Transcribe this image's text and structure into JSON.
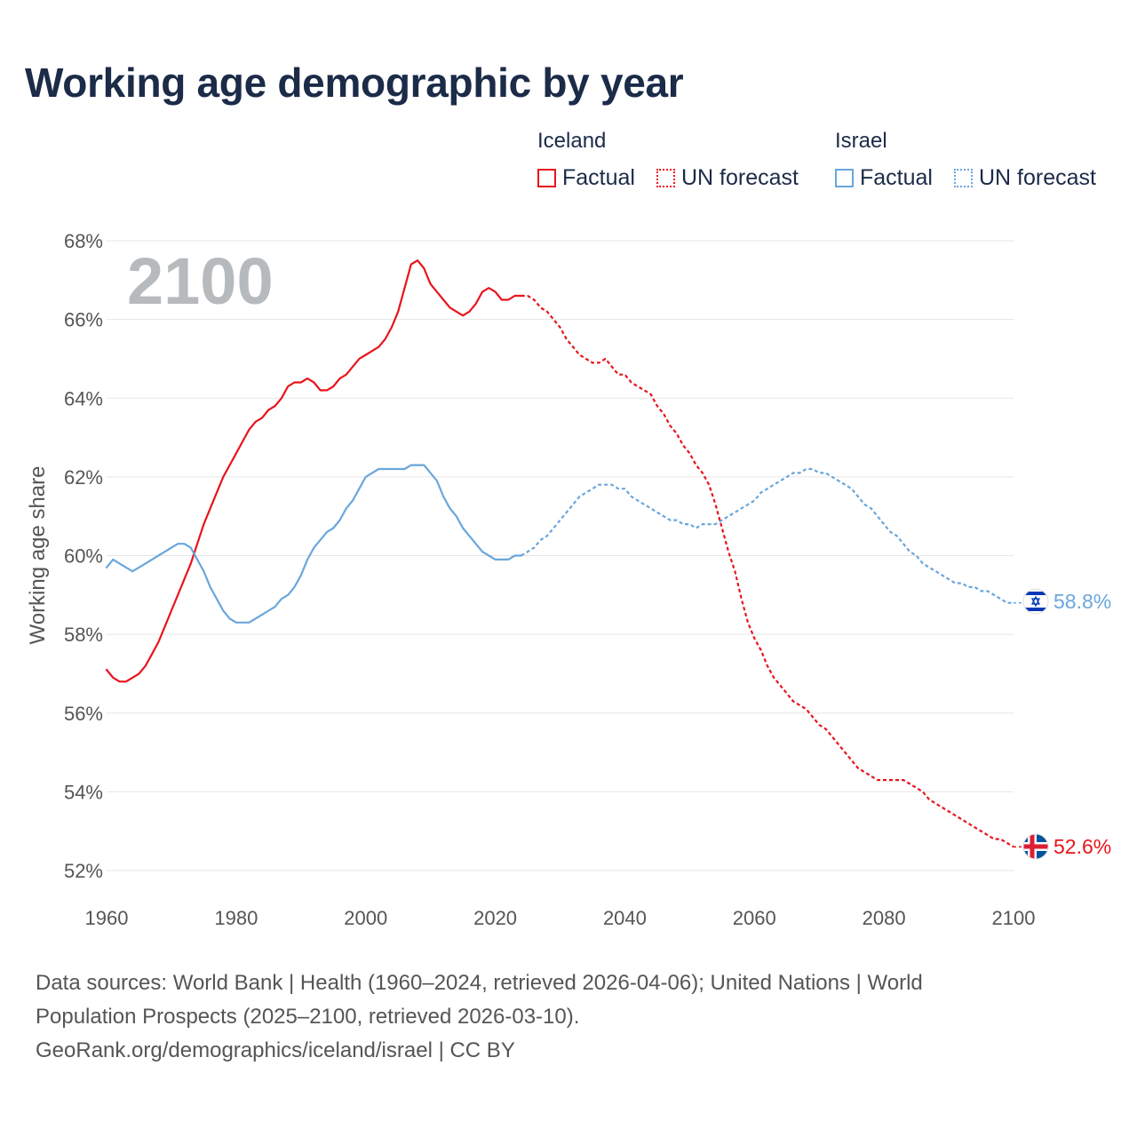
{
  "title": "Working age demographic by year",
  "legend": {
    "groups": [
      {
        "country": "Iceland",
        "factual_label": "Factual",
        "forecast_label": "UN forecast",
        "color": "#e8141c"
      },
      {
        "country": "Israel",
        "factual_label": "Factual",
        "forecast_label": "UN forecast",
        "color": "#6aa6dc"
      }
    ]
  },
  "year_label": "2100",
  "footer": {
    "line1": "Data sources: World Bank | Health (1960–2024, retrieved 2026-04-06); United Nations | World",
    "line2": "Population Prospects (2025–2100, retrieved 2026-03-10).",
    "line3": "GeoRank.org/demographics/iceland/israel | CC BY"
  },
  "colors": {
    "title": "#1b2b48",
    "grid": "#e6e6e6",
    "tick": "#555555",
    "year_label": "#b7babd"
  },
  "chart_data": {
    "type": "line",
    "title": "Working age demographic by year",
    "xlabel": "",
    "ylabel": "Working age share",
    "xlim": [
      1960,
      2100
    ],
    "ylim": [
      52,
      68
    ],
    "xticks": [
      1960,
      1980,
      2000,
      2020,
      2040,
      2060,
      2080,
      2100
    ],
    "yticks": [
      52,
      54,
      56,
      58,
      60,
      62,
      64,
      66,
      68
    ],
    "ytick_suffix": "%",
    "factual_end_year": 2024,
    "series": [
      {
        "name": "Iceland",
        "color": "#e8141c",
        "end_label": "52.6%",
        "flag": "iceland-flag",
        "points": [
          [
            1960,
            57.1
          ],
          [
            1961,
            56.9
          ],
          [
            1962,
            56.8
          ],
          [
            1963,
            56.8
          ],
          [
            1964,
            56.9
          ],
          [
            1965,
            57.0
          ],
          [
            1966,
            57.2
          ],
          [
            1967,
            57.5
          ],
          [
            1968,
            57.8
          ],
          [
            1969,
            58.2
          ],
          [
            1970,
            58.6
          ],
          [
            1971,
            59.0
          ],
          [
            1972,
            59.4
          ],
          [
            1973,
            59.8
          ],
          [
            1974,
            60.3
          ],
          [
            1975,
            60.8
          ],
          [
            1976,
            61.2
          ],
          [
            1977,
            61.6
          ],
          [
            1978,
            62.0
          ],
          [
            1979,
            62.3
          ],
          [
            1980,
            62.6
          ],
          [
            1981,
            62.9
          ],
          [
            1982,
            63.2
          ],
          [
            1983,
            63.4
          ],
          [
            1984,
            63.5
          ],
          [
            1985,
            63.7
          ],
          [
            1986,
            63.8
          ],
          [
            1987,
            64.0
          ],
          [
            1988,
            64.3
          ],
          [
            1989,
            64.4
          ],
          [
            1990,
            64.4
          ],
          [
            1991,
            64.5
          ],
          [
            1992,
            64.4
          ],
          [
            1993,
            64.2
          ],
          [
            1994,
            64.2
          ],
          [
            1995,
            64.3
          ],
          [
            1996,
            64.5
          ],
          [
            1997,
            64.6
          ],
          [
            1998,
            64.8
          ],
          [
            1999,
            65.0
          ],
          [
            2000,
            65.1
          ],
          [
            2001,
            65.2
          ],
          [
            2002,
            65.3
          ],
          [
            2003,
            65.5
          ],
          [
            2004,
            65.8
          ],
          [
            2005,
            66.2
          ],
          [
            2006,
            66.8
          ],
          [
            2007,
            67.4
          ],
          [
            2008,
            67.5
          ],
          [
            2009,
            67.3
          ],
          [
            2010,
            66.9
          ],
          [
            2011,
            66.7
          ],
          [
            2012,
            66.5
          ],
          [
            2013,
            66.3
          ],
          [
            2014,
            66.2
          ],
          [
            2015,
            66.1
          ],
          [
            2016,
            66.2
          ],
          [
            2017,
            66.4
          ],
          [
            2018,
            66.7
          ],
          [
            2019,
            66.8
          ],
          [
            2020,
            66.7
          ],
          [
            2021,
            66.5
          ],
          [
            2022,
            66.5
          ],
          [
            2023,
            66.6
          ],
          [
            2024,
            66.6
          ],
          [
            2025,
            66.6
          ],
          [
            2026,
            66.5
          ],
          [
            2027,
            66.3
          ],
          [
            2028,
            66.2
          ],
          [
            2029,
            66.0
          ],
          [
            2030,
            65.8
          ],
          [
            2031,
            65.5
          ],
          [
            2032,
            65.3
          ],
          [
            2033,
            65.1
          ],
          [
            2034,
            65.0
          ],
          [
            2035,
            64.9
          ],
          [
            2036,
            64.9
          ],
          [
            2037,
            65.0
          ],
          [
            2038,
            64.8
          ],
          [
            2039,
            64.6
          ],
          [
            2040,
            64.6
          ],
          [
            2041,
            64.4
          ],
          [
            2042,
            64.3
          ],
          [
            2043,
            64.2
          ],
          [
            2044,
            64.1
          ],
          [
            2045,
            63.8
          ],
          [
            2046,
            63.6
          ],
          [
            2047,
            63.3
          ],
          [
            2048,
            63.1
          ],
          [
            2049,
            62.8
          ],
          [
            2050,
            62.6
          ],
          [
            2051,
            62.3
          ],
          [
            2052,
            62.1
          ],
          [
            2053,
            61.8
          ],
          [
            2054,
            61.3
          ],
          [
            2055,
            60.7
          ],
          [
            2056,
            60.1
          ],
          [
            2057,
            59.6
          ],
          [
            2058,
            58.9
          ],
          [
            2059,
            58.3
          ],
          [
            2060,
            57.9
          ],
          [
            2061,
            57.6
          ],
          [
            2062,
            57.2
          ],
          [
            2063,
            56.9
          ],
          [
            2064,
            56.7
          ],
          [
            2065,
            56.5
          ],
          [
            2066,
            56.3
          ],
          [
            2067,
            56.2
          ],
          [
            2068,
            56.1
          ],
          [
            2069,
            55.9
          ],
          [
            2070,
            55.7
          ],
          [
            2071,
            55.6
          ],
          [
            2072,
            55.4
          ],
          [
            2073,
            55.2
          ],
          [
            2074,
            55.0
          ],
          [
            2075,
            54.8
          ],
          [
            2076,
            54.6
          ],
          [
            2077,
            54.5
          ],
          [
            2078,
            54.4
          ],
          [
            2079,
            54.3
          ],
          [
            2080,
            54.3
          ],
          [
            2081,
            54.3
          ],
          [
            2082,
            54.3
          ],
          [
            2083,
            54.3
          ],
          [
            2084,
            54.2
          ],
          [
            2085,
            54.1
          ],
          [
            2086,
            54.0
          ],
          [
            2087,
            53.8
          ],
          [
            2088,
            53.7
          ],
          [
            2089,
            53.6
          ],
          [
            2090,
            53.5
          ],
          [
            2091,
            53.4
          ],
          [
            2092,
            53.3
          ],
          [
            2093,
            53.2
          ],
          [
            2094,
            53.1
          ],
          [
            2095,
            53.0
          ],
          [
            2096,
            52.9
          ],
          [
            2097,
            52.8
          ],
          [
            2098,
            52.8
          ],
          [
            2099,
            52.7
          ],
          [
            2100,
            52.6
          ]
        ]
      },
      {
        "name": "Israel",
        "color": "#6aa6dc",
        "end_label": "58.8%",
        "flag": "israel-flag",
        "points": [
          [
            1960,
            59.7
          ],
          [
            1961,
            59.9
          ],
          [
            1962,
            59.8
          ],
          [
            1963,
            59.7
          ],
          [
            1964,
            59.6
          ],
          [
            1965,
            59.7
          ],
          [
            1966,
            59.8
          ],
          [
            1967,
            59.9
          ],
          [
            1968,
            60.0
          ],
          [
            1969,
            60.1
          ],
          [
            1970,
            60.2
          ],
          [
            1971,
            60.3
          ],
          [
            1972,
            60.3
          ],
          [
            1973,
            60.2
          ],
          [
            1974,
            59.9
          ],
          [
            1975,
            59.6
          ],
          [
            1976,
            59.2
          ],
          [
            1977,
            58.9
          ],
          [
            1978,
            58.6
          ],
          [
            1979,
            58.4
          ],
          [
            1980,
            58.3
          ],
          [
            1981,
            58.3
          ],
          [
            1982,
            58.3
          ],
          [
            1983,
            58.4
          ],
          [
            1984,
            58.5
          ],
          [
            1985,
            58.6
          ],
          [
            1986,
            58.7
          ],
          [
            1987,
            58.9
          ],
          [
            1988,
            59.0
          ],
          [
            1989,
            59.2
          ],
          [
            1990,
            59.5
          ],
          [
            1991,
            59.9
          ],
          [
            1992,
            60.2
          ],
          [
            1993,
            60.4
          ],
          [
            1994,
            60.6
          ],
          [
            1995,
            60.7
          ],
          [
            1996,
            60.9
          ],
          [
            1997,
            61.2
          ],
          [
            1998,
            61.4
          ],
          [
            1999,
            61.7
          ],
          [
            2000,
            62.0
          ],
          [
            2001,
            62.1
          ],
          [
            2002,
            62.2
          ],
          [
            2003,
            62.2
          ],
          [
            2004,
            62.2
          ],
          [
            2005,
            62.2
          ],
          [
            2006,
            62.2
          ],
          [
            2007,
            62.3
          ],
          [
            2008,
            62.3
          ],
          [
            2009,
            62.3
          ],
          [
            2010,
            62.1
          ],
          [
            2011,
            61.9
          ],
          [
            2012,
            61.5
          ],
          [
            2013,
            61.2
          ],
          [
            2014,
            61.0
          ],
          [
            2015,
            60.7
          ],
          [
            2016,
            60.5
          ],
          [
            2017,
            60.3
          ],
          [
            2018,
            60.1
          ],
          [
            2019,
            60.0
          ],
          [
            2020,
            59.9
          ],
          [
            2021,
            59.9
          ],
          [
            2022,
            59.9
          ],
          [
            2023,
            60.0
          ],
          [
            2024,
            60.0
          ],
          [
            2025,
            60.1
          ],
          [
            2026,
            60.2
          ],
          [
            2027,
            60.4
          ],
          [
            2028,
            60.5
          ],
          [
            2029,
            60.7
          ],
          [
            2030,
            60.9
          ],
          [
            2031,
            61.1
          ],
          [
            2032,
            61.3
          ],
          [
            2033,
            61.5
          ],
          [
            2034,
            61.6
          ],
          [
            2035,
            61.7
          ],
          [
            2036,
            61.8
          ],
          [
            2037,
            61.8
          ],
          [
            2038,
            61.8
          ],
          [
            2039,
            61.7
          ],
          [
            2040,
            61.7
          ],
          [
            2041,
            61.5
          ],
          [
            2042,
            61.4
          ],
          [
            2043,
            61.3
          ],
          [
            2044,
            61.2
          ],
          [
            2045,
            61.1
          ],
          [
            2046,
            61.0
          ],
          [
            2047,
            60.9
          ],
          [
            2048,
            60.9
          ],
          [
            2049,
            60.8
          ],
          [
            2050,
            60.8
          ],
          [
            2051,
            60.7
          ],
          [
            2052,
            60.8
          ],
          [
            2053,
            60.8
          ],
          [
            2054,
            60.8
          ],
          [
            2055,
            60.9
          ],
          [
            2056,
            61.0
          ],
          [
            2057,
            61.1
          ],
          [
            2058,
            61.2
          ],
          [
            2059,
            61.3
          ],
          [
            2060,
            61.4
          ],
          [
            2061,
            61.6
          ],
          [
            2062,
            61.7
          ],
          [
            2063,
            61.8
          ],
          [
            2064,
            61.9
          ],
          [
            2065,
            62.0
          ],
          [
            2066,
            62.1
          ],
          [
            2067,
            62.1
          ],
          [
            2068,
            62.2
          ],
          [
            2069,
            62.2
          ],
          [
            2070,
            62.1
          ],
          [
            2071,
            62.1
          ],
          [
            2072,
            62.0
          ],
          [
            2073,
            61.9
          ],
          [
            2074,
            61.8
          ],
          [
            2075,
            61.7
          ],
          [
            2076,
            61.5
          ],
          [
            2077,
            61.3
          ],
          [
            2078,
            61.2
          ],
          [
            2079,
            61.0
          ],
          [
            2080,
            60.8
          ],
          [
            2081,
            60.6
          ],
          [
            2082,
            60.5
          ],
          [
            2083,
            60.3
          ],
          [
            2084,
            60.1
          ],
          [
            2085,
            60.0
          ],
          [
            2086,
            59.8
          ],
          [
            2087,
            59.7
          ],
          [
            2088,
            59.6
          ],
          [
            2089,
            59.5
          ],
          [
            2090,
            59.4
          ],
          [
            2091,
            59.3
          ],
          [
            2092,
            59.3
          ],
          [
            2093,
            59.2
          ],
          [
            2094,
            59.2
          ],
          [
            2095,
            59.1
          ],
          [
            2096,
            59.1
          ],
          [
            2097,
            59.0
          ],
          [
            2098,
            58.9
          ],
          [
            2099,
            58.8
          ],
          [
            2100,
            58.8
          ]
        ]
      }
    ]
  }
}
